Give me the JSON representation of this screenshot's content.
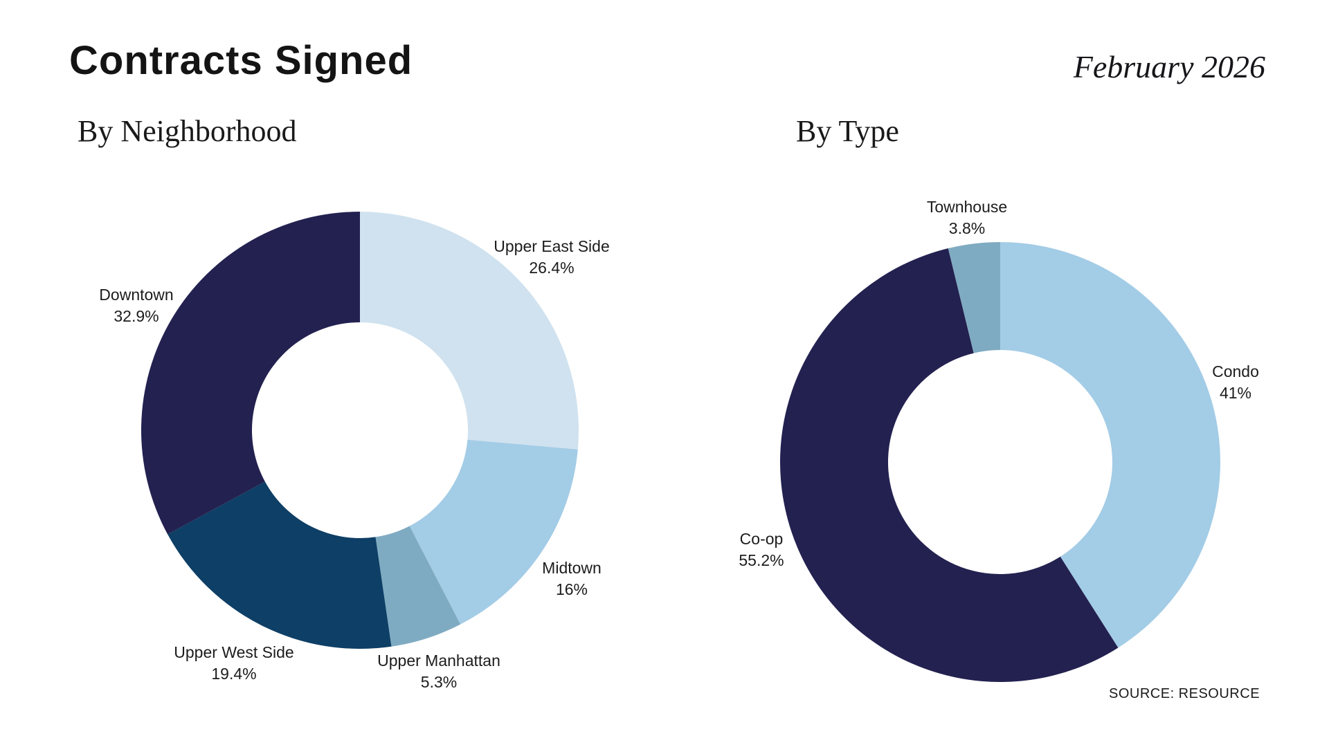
{
  "header": {
    "title": "Contracts Signed",
    "date": "February 2026"
  },
  "source_text": "SOURCE: RESOURCE",
  "palette": {
    "dark_navy": "#232150",
    "deep_blue": "#0e3f66",
    "steel_blue": "#7fabc2",
    "light_blue": "#a3cce6",
    "pale_blue": "#d0e2ef",
    "text": "#1c1c1c",
    "background": "#ffffff"
  },
  "chart_data": [
    {
      "type": "pie",
      "style": "donut",
      "title": "By Neighborhood",
      "start_angle_deg": 0,
      "direction": "clockwise",
      "legend_position": "outside-labels",
      "segments": [
        {
          "label": "Upper East Side",
          "value": 26.4,
          "pct_label": "26.4%",
          "color": "#d0e2ef"
        },
        {
          "label": "Midtown",
          "value": 16,
          "pct_label": "16%",
          "color": "#a3cce6"
        },
        {
          "label": "Upper Manhattan",
          "value": 5.3,
          "pct_label": "5.3%",
          "color": "#7fabc2"
        },
        {
          "label": "Upper West Side",
          "value": 19.4,
          "pct_label": "19.4%",
          "color": "#0e3f66"
        },
        {
          "label": "Downtown",
          "value": 32.9,
          "pct_label": "32.9%",
          "color": "#232150"
        }
      ]
    },
    {
      "type": "pie",
      "style": "donut",
      "title": "By Type",
      "start_angle_deg": 0,
      "direction": "clockwise",
      "legend_position": "outside-labels",
      "segments": [
        {
          "label": "Condo",
          "value": 41,
          "pct_label": "41%",
          "color": "#a3cce6"
        },
        {
          "label": "Co-op",
          "value": 55.2,
          "pct_label": "55.2%",
          "color": "#232150"
        },
        {
          "label": "Townhouse",
          "value": 3.8,
          "pct_label": "3.8%",
          "color": "#7fabc2"
        }
      ]
    }
  ]
}
